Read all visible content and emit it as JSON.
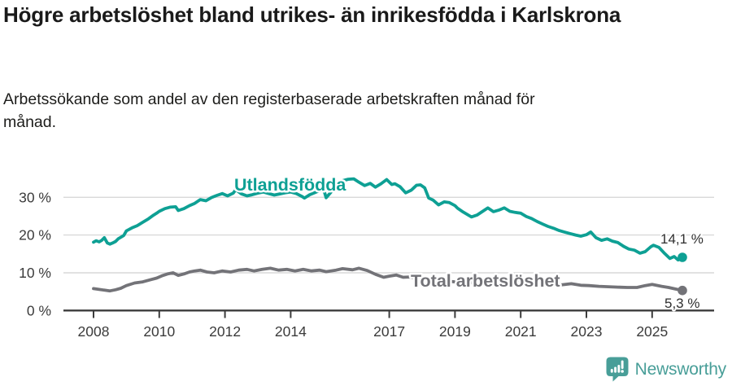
{
  "title": "Högre arbetslöshet bland utrikes- än inrikesfödda i Karlskrona",
  "subtitle": "Arbetssökande som andel av den registerbaserade arbetskraften månad för månad.",
  "branding": {
    "name": "Newsworthy",
    "logo_icon": "newsworthy-bubble-chart-icon"
  },
  "colors": {
    "foreign_born_line": "#0ea094",
    "total_line": "#737378",
    "axis": "#3c3c3c",
    "gridline": "#d9d9d9",
    "title_text": "#1a1a1a",
    "tick_text": "#3b3b3b",
    "end_label_text": "#2f2f2f",
    "brand_teal": "#489e98"
  },
  "chart_data": {
    "type": "line",
    "unit": "%",
    "x_axis": {
      "tick_years": [
        2008,
        2010,
        2012,
        2014,
        2017,
        2019,
        2021,
        2023,
        2025
      ],
      "tick_labels": [
        "2008",
        "2010",
        "2012",
        "2014",
        "2017",
        "2019",
        "2021",
        "2023",
        "2025"
      ],
      "range": [
        2007.4,
        2026.6
      ]
    },
    "y_axis": {
      "ticks": [
        30,
        20,
        10,
        0
      ],
      "tick_labels": [
        "30 %",
        "20 %",
        "10 %",
        "0 %"
      ],
      "range": [
        0,
        36
      ],
      "grid": true
    },
    "legend_position": "inline-labels",
    "series": [
      {
        "name": "Utlandsfödda",
        "color": "#0ea094",
        "end_value": 14.1,
        "end_label": "14,1 %",
        "points": [
          [
            2008.0,
            18.1
          ],
          [
            2008.08,
            18.5
          ],
          [
            2008.17,
            18.2
          ],
          [
            2008.25,
            18.6
          ],
          [
            2008.33,
            19.3
          ],
          [
            2008.42,
            17.9
          ],
          [
            2008.5,
            17.6
          ],
          [
            2008.58,
            17.9
          ],
          [
            2008.67,
            18.3
          ],
          [
            2008.75,
            19.0
          ],
          [
            2008.83,
            19.4
          ],
          [
            2008.92,
            19.9
          ],
          [
            2009.0,
            21.1
          ],
          [
            2009.17,
            21.9
          ],
          [
            2009.33,
            22.5
          ],
          [
            2009.5,
            23.4
          ],
          [
            2009.67,
            24.3
          ],
          [
            2009.83,
            25.3
          ],
          [
            2009.92,
            25.8
          ],
          [
            2010.0,
            26.3
          ],
          [
            2010.17,
            27.0
          ],
          [
            2010.33,
            27.4
          ],
          [
            2010.5,
            27.5
          ],
          [
            2010.58,
            26.5
          ],
          [
            2010.75,
            27.0
          ],
          [
            2010.92,
            27.8
          ],
          [
            2011.08,
            28.4
          ],
          [
            2011.25,
            29.4
          ],
          [
            2011.42,
            29.1
          ],
          [
            2011.58,
            29.9
          ],
          [
            2011.75,
            30.5
          ],
          [
            2011.92,
            31.0
          ],
          [
            2012.08,
            30.4
          ],
          [
            2012.25,
            31.1
          ],
          [
            2012.33,
            32.0
          ],
          [
            2012.5,
            30.9
          ],
          [
            2012.67,
            30.4
          ],
          [
            2012.83,
            30.7
          ],
          [
            2013.0,
            31.1
          ],
          [
            2013.17,
            31.4
          ],
          [
            2013.33,
            31.0
          ],
          [
            2013.5,
            30.6
          ],
          [
            2013.67,
            30.9
          ],
          [
            2013.83,
            31.2
          ],
          [
            2014.0,
            31.4
          ],
          [
            2014.17,
            31.0
          ],
          [
            2014.33,
            30.3
          ],
          [
            2014.42,
            29.8
          ],
          [
            2014.58,
            30.7
          ],
          [
            2014.75,
            31.3
          ],
          [
            2014.92,
            31.9
          ],
          [
            2015.0,
            32.2
          ],
          [
            2015.08,
            29.9
          ],
          [
            2015.25,
            31.6
          ],
          [
            2015.42,
            33.0
          ],
          [
            2015.58,
            34.4
          ],
          [
            2015.75,
            34.8
          ],
          [
            2015.92,
            34.9
          ],
          [
            2016.08,
            34.0
          ],
          [
            2016.25,
            33.1
          ],
          [
            2016.42,
            33.7
          ],
          [
            2016.58,
            32.7
          ],
          [
            2016.75,
            33.6
          ],
          [
            2016.92,
            34.7
          ],
          [
            2017.08,
            33.4
          ],
          [
            2017.17,
            33.6
          ],
          [
            2017.33,
            32.8
          ],
          [
            2017.5,
            31.2
          ],
          [
            2017.67,
            31.9
          ],
          [
            2017.83,
            33.2
          ],
          [
            2017.95,
            33.3
          ],
          [
            2018.08,
            32.5
          ],
          [
            2018.2,
            29.8
          ],
          [
            2018.33,
            29.3
          ],
          [
            2018.5,
            28.0
          ],
          [
            2018.67,
            28.8
          ],
          [
            2018.83,
            28.6
          ],
          [
            2019.0,
            27.8
          ],
          [
            2019.08,
            27.1
          ],
          [
            2019.25,
            26.1
          ],
          [
            2019.5,
            24.8
          ],
          [
            2019.67,
            25.3
          ],
          [
            2019.83,
            26.2
          ],
          [
            2020.0,
            27.2
          ],
          [
            2020.17,
            26.2
          ],
          [
            2020.33,
            26.6
          ],
          [
            2020.5,
            27.2
          ],
          [
            2020.67,
            26.3
          ],
          [
            2020.83,
            26.0
          ],
          [
            2021.0,
            25.8
          ],
          [
            2021.17,
            24.9
          ],
          [
            2021.33,
            24.4
          ],
          [
            2021.5,
            23.6
          ],
          [
            2021.67,
            22.9
          ],
          [
            2021.83,
            22.3
          ],
          [
            2022.0,
            21.8
          ],
          [
            2022.17,
            21.2
          ],
          [
            2022.33,
            20.8
          ],
          [
            2022.5,
            20.4
          ],
          [
            2022.67,
            20.0
          ],
          [
            2022.83,
            19.7
          ],
          [
            2023.0,
            20.1
          ],
          [
            2023.13,
            20.8
          ],
          [
            2023.29,
            19.3
          ],
          [
            2023.46,
            18.6
          ],
          [
            2023.63,
            19.0
          ],
          [
            2023.79,
            18.4
          ],
          [
            2023.96,
            18.0
          ],
          [
            2024.13,
            17.0
          ],
          [
            2024.29,
            16.3
          ],
          [
            2024.46,
            16.0
          ],
          [
            2024.63,
            15.2
          ],
          [
            2024.79,
            15.6
          ],
          [
            2024.96,
            16.9
          ],
          [
            2025.04,
            17.3
          ],
          [
            2025.21,
            16.7
          ],
          [
            2025.38,
            15.1
          ],
          [
            2025.54,
            13.8
          ],
          [
            2025.67,
            14.3
          ],
          [
            2025.79,
            13.4
          ],
          [
            2025.92,
            14.1
          ]
        ]
      },
      {
        "name": "Total arbetslöshet",
        "color": "#737378",
        "end_value": 5.3,
        "end_label": "5,3 %",
        "points": [
          [
            2008.0,
            5.8
          ],
          [
            2008.17,
            5.6
          ],
          [
            2008.33,
            5.4
          ],
          [
            2008.5,
            5.2
          ],
          [
            2008.67,
            5.5
          ],
          [
            2008.83,
            5.9
          ],
          [
            2009.0,
            6.6
          ],
          [
            2009.25,
            7.3
          ],
          [
            2009.5,
            7.6
          ],
          [
            2009.75,
            8.2
          ],
          [
            2009.92,
            8.6
          ],
          [
            2010.08,
            9.2
          ],
          [
            2010.25,
            9.7
          ],
          [
            2010.42,
            10.0
          ],
          [
            2010.58,
            9.3
          ],
          [
            2010.75,
            9.7
          ],
          [
            2010.92,
            10.2
          ],
          [
            2011.08,
            10.5
          ],
          [
            2011.25,
            10.7
          ],
          [
            2011.45,
            10.2
          ],
          [
            2011.67,
            10.0
          ],
          [
            2011.92,
            10.5
          ],
          [
            2012.17,
            10.2
          ],
          [
            2012.42,
            10.7
          ],
          [
            2012.67,
            10.9
          ],
          [
            2012.88,
            10.5
          ],
          [
            2013.13,
            10.9
          ],
          [
            2013.38,
            11.2
          ],
          [
            2013.63,
            10.7
          ],
          [
            2013.88,
            10.9
          ],
          [
            2014.13,
            10.5
          ],
          [
            2014.38,
            10.9
          ],
          [
            2014.63,
            10.5
          ],
          [
            2014.88,
            10.7
          ],
          [
            2015.08,
            10.3
          ],
          [
            2015.38,
            10.7
          ],
          [
            2015.58,
            11.1
          ],
          [
            2015.88,
            10.8
          ],
          [
            2016.08,
            11.2
          ],
          [
            2016.33,
            10.6
          ],
          [
            2016.58,
            9.6
          ],
          [
            2016.83,
            8.8
          ],
          [
            2017.0,
            9.1
          ],
          [
            2017.21,
            9.4
          ],
          [
            2017.42,
            8.8
          ],
          [
            2017.63,
            8.9
          ],
          [
            2017.83,
            8.4
          ],
          [
            2018.04,
            8.6
          ],
          [
            2018.33,
            8.2
          ],
          [
            2018.63,
            7.9
          ],
          [
            2019.0,
            7.6
          ],
          [
            2019.38,
            7.3
          ],
          [
            2019.75,
            7.5
          ],
          [
            2020.13,
            8.3
          ],
          [
            2020.5,
            8.6
          ],
          [
            2020.83,
            8.2
          ],
          [
            2021.13,
            7.8
          ],
          [
            2021.5,
            7.4
          ],
          [
            2021.88,
            7.0
          ],
          [
            2022.25,
            6.8
          ],
          [
            2022.54,
            7.1
          ],
          [
            2022.83,
            6.7
          ],
          [
            2023.08,
            6.6
          ],
          [
            2023.38,
            6.4
          ],
          [
            2023.67,
            6.3
          ],
          [
            2023.96,
            6.2
          ],
          [
            2024.25,
            6.1
          ],
          [
            2024.54,
            6.1
          ],
          [
            2024.79,
            6.6
          ],
          [
            2025.0,
            6.9
          ],
          [
            2025.29,
            6.4
          ],
          [
            2025.5,
            6.1
          ],
          [
            2025.71,
            5.7
          ],
          [
            2025.92,
            5.3
          ]
        ]
      }
    ]
  }
}
